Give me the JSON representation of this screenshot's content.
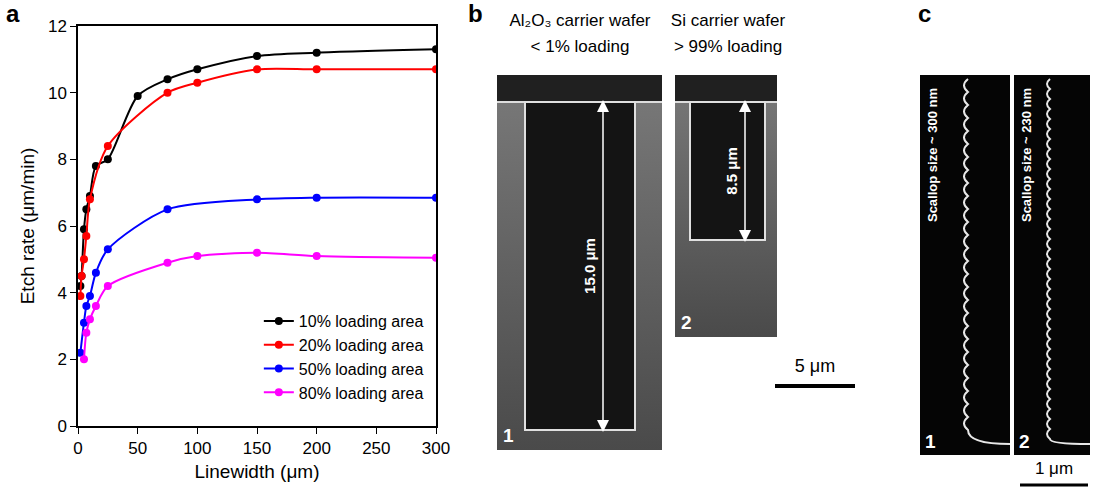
{
  "chart_data": {
    "type": "line",
    "panel_label": "a",
    "x_label": "Linewidth (μm)",
    "y_label": "Etch rate (μm/min)",
    "xlim": [
      0,
      300
    ],
    "xticks": [
      0,
      50,
      100,
      150,
      200,
      250,
      300
    ],
    "ylim": [
      0,
      12
    ],
    "yticks": [
      0,
      2,
      4,
      6,
      8,
      10,
      12
    ],
    "legend": "bottom right",
    "marker": "circle",
    "line_style": "smooth",
    "grid": false,
    "series": [
      {
        "name": "10% loading area",
        "color": "#000000",
        "x": [
          2,
          3,
          5,
          7,
          10,
          15,
          25,
          50,
          75,
          100,
          150,
          200,
          300
        ],
        "values": [
          4.2,
          4.5,
          5.9,
          6.5,
          6.9,
          7.8,
          8.0,
          9.9,
          10.4,
          10.7,
          11.1,
          11.2,
          11.3
        ]
      },
      {
        "name": "20% loading area",
        "color": "#ff0000",
        "x": [
          2,
          3,
          5,
          7,
          10,
          25,
          75,
          100,
          150,
          200,
          300
        ],
        "values": [
          3.9,
          4.5,
          5.0,
          5.7,
          6.8,
          8.4,
          10.0,
          10.3,
          10.7,
          10.7,
          10.7
        ]
      },
      {
        "name": "50% loading area",
        "color": "#0000ff",
        "x": [
          2,
          5,
          7,
          10,
          15,
          25,
          75,
          150,
          200,
          300
        ],
        "values": [
          2.2,
          3.1,
          3.6,
          3.9,
          4.6,
          5.3,
          6.5,
          6.8,
          6.85,
          6.85
        ]
      },
      {
        "name": "80% loading area",
        "color": "#ff00ff",
        "x": [
          5,
          7,
          10,
          15,
          25,
          75,
          100,
          150,
          200,
          300
        ],
        "values": [
          2.0,
          2.8,
          3.2,
          3.6,
          4.2,
          4.9,
          5.1,
          5.2,
          5.1,
          5.05
        ]
      }
    ]
  },
  "panel_b": {
    "label": "b",
    "images": [
      {
        "title": "Al₂O₃ carrier wafer",
        "subtitle": "< 1% loading",
        "depth": "15.0 μm",
        "label": "1"
      },
      {
        "title": "Si carrier wafer",
        "subtitle": "> 99% loading",
        "depth": "8.5 μm",
        "label": "2"
      }
    ],
    "scale_bar": "5 μm"
  },
  "panel_c": {
    "label": "c",
    "images": [
      {
        "caption": "Scallop size ~ 300 nm",
        "label": "1"
      },
      {
        "caption": "Scallop size ~ 230 nm",
        "label": "2"
      }
    ],
    "scale_bar": "1 μm"
  }
}
